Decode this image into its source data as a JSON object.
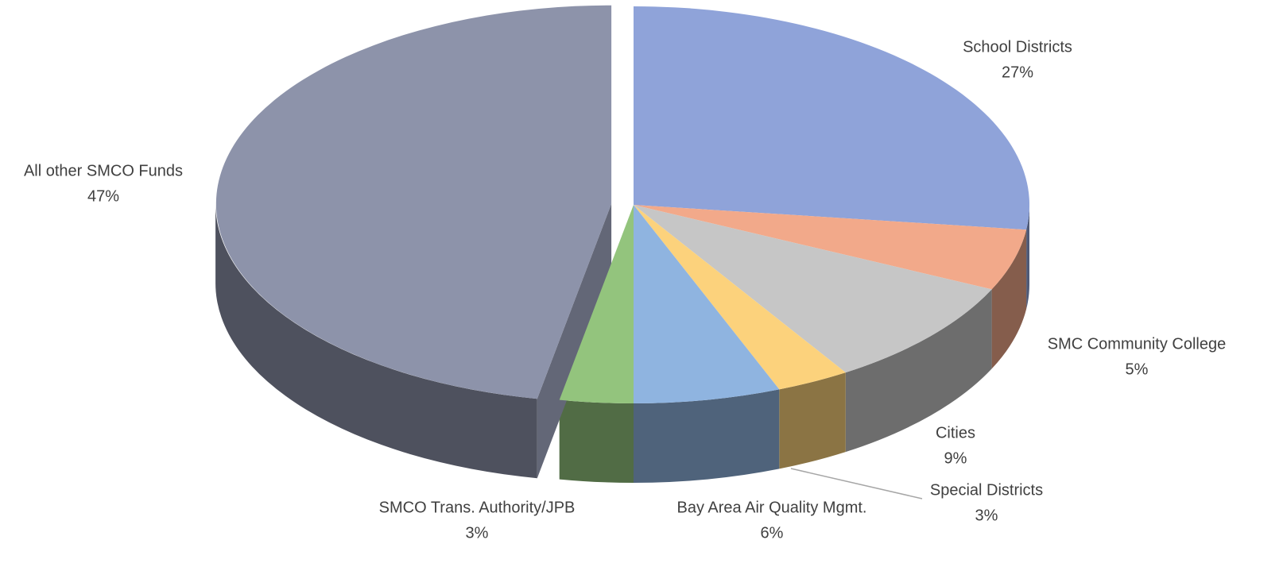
{
  "chart_data": {
    "type": "pie",
    "categories": [
      "School Districts",
      "SMC Community College",
      "Cities",
      "Special Districts",
      "Bay Area Air Quality Mgmt.",
      "SMCO Trans. Authority/JPB",
      "All other SMCO Funds"
    ],
    "values": [
      27,
      5,
      9,
      3,
      6,
      3,
      47
    ],
    "value_labels": [
      "27%",
      "5%",
      "9%",
      "3%",
      "6%",
      "3%",
      "47%"
    ],
    "colors": [
      "#8fa3d9",
      "#f2a98a",
      "#c6c6c6",
      "#fcd27c",
      "#8fb4e0",
      "#93c47d",
      "#8d93aa"
    ],
    "exploded": [
      "All other SMCO Funds"
    ]
  }
}
